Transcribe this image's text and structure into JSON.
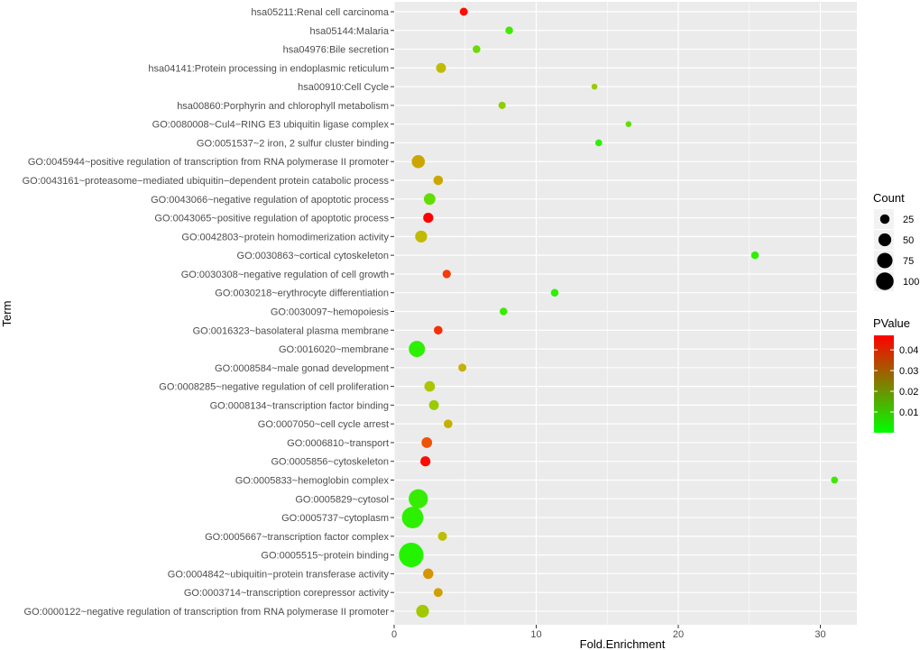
{
  "chart_data": {
    "type": "scatter",
    "xlabel": "Fold.Enrichment",
    "ylabel": "Term",
    "xlim": [
      0,
      32
    ],
    "xticks": [
      0,
      10,
      20,
      30
    ],
    "grid": true,
    "colors": {
      "panel": "#ebebeb",
      "grid": "#ffffff",
      "low": "#00ff00",
      "high": "#ff0000"
    },
    "size_legend": {
      "title": "Count",
      "values": [
        25,
        50,
        75,
        100
      ]
    },
    "color_legend": {
      "title": "PValue",
      "range": [
        0,
        0.047
      ],
      "ticks": [
        0.04,
        0.03,
        0.02,
        0.01
      ],
      "tick_labels": [
        "0.04",
        "0.03",
        "0.02",
        "0.01"
      ]
    },
    "points": [
      {
        "term": "hsa05211:Renal cell carcinoma",
        "x": 4.9,
        "pvalue": 0.046,
        "count": 9
      },
      {
        "term": "hsa05144:Malaria",
        "x": 8.1,
        "pvalue": 0.007,
        "count": 8
      },
      {
        "term": "hsa04976:Bile secretion",
        "x": 5.8,
        "pvalue": 0.012,
        "count": 8
      },
      {
        "term": "hsa04141:Protein processing in endoplasmic reticulum",
        "x": 3.3,
        "pvalue": 0.022,
        "count": 15
      },
      {
        "term": "hsa00910:Cell Cycle",
        "x": 14.1,
        "pvalue": 0.017,
        "count": 4
      },
      {
        "term": "hsa00860:Porphyrin and chlorophyll metabolism",
        "x": 7.6,
        "pvalue": 0.016,
        "count": 7
      },
      {
        "term": "GO:0080008~Cul4-RING E3 ubiquitin ligase complex",
        "x": 16.5,
        "pvalue": 0.011,
        "count": 4
      },
      {
        "term": "GO:0051537~2 iron, 2 sulfur cluster binding",
        "x": 14.4,
        "pvalue": 0.005,
        "count": 6
      },
      {
        "term": "GO:0045944~positive regulation of transcription from RNA polymerase II promoter",
        "x": 1.7,
        "pvalue": 0.026,
        "count": 30
      },
      {
        "term": "GO:0043161~proteasome-mediated ubiquitin-dependent protein catabolic process",
        "x": 3.1,
        "pvalue": 0.026,
        "count": 14
      },
      {
        "term": "GO:0043066~negative regulation of apoptotic process",
        "x": 2.5,
        "pvalue": 0.011,
        "count": 22
      },
      {
        "term": "GO:0043065~positive regulation of apoptotic process",
        "x": 2.4,
        "pvalue": 0.047,
        "count": 16
      },
      {
        "term": "GO:0042803~protein homodimerization activity",
        "x": 1.9,
        "pvalue": 0.022,
        "count": 24
      },
      {
        "term": "GO:0030863~cortical cytoskeleton",
        "x": 25.4,
        "pvalue": 0.005,
        "count": 8
      },
      {
        "term": "GO:0030308~negative regulation of cell growth",
        "x": 3.7,
        "pvalue": 0.042,
        "count": 10
      },
      {
        "term": "GO:0030218~erythrocyte differentiation",
        "x": 11.3,
        "pvalue": 0.005,
        "count": 8
      },
      {
        "term": "GO:0030097~hemopoiesis",
        "x": 7.7,
        "pvalue": 0.006,
        "count": 8
      },
      {
        "term": "GO:0016323~basolateral plasma membrane",
        "x": 3.1,
        "pvalue": 0.043,
        "count": 11
      },
      {
        "term": "GO:0016020~membrane",
        "x": 1.6,
        "pvalue": 0.005,
        "count": 48
      },
      {
        "term": "GO:0008584~male gonad development",
        "x": 4.8,
        "pvalue": 0.024,
        "count": 9
      },
      {
        "term": "GO:0008285~negative regulation of cell proliferation",
        "x": 2.5,
        "pvalue": 0.019,
        "count": 18
      },
      {
        "term": "GO:0008134~transcription factor binding",
        "x": 2.8,
        "pvalue": 0.017,
        "count": 15
      },
      {
        "term": "GO:0007050~cell cycle arrest",
        "x": 3.8,
        "pvalue": 0.024,
        "count": 11
      },
      {
        "term": "GO:0006810~transport",
        "x": 2.3,
        "pvalue": 0.04,
        "count": 18
      },
      {
        "term": "GO:0005856~cytoskeleton",
        "x": 2.2,
        "pvalue": 0.046,
        "count": 16
      },
      {
        "term": "GO:0005833~hemoglobin complex",
        "x": 31.0,
        "pvalue": 0.007,
        "count": 6
      },
      {
        "term": "GO:0005829~cytosol",
        "x": 1.7,
        "pvalue": 0.006,
        "count": 70
      },
      {
        "term": "GO:0005737~cytoplasm",
        "x": 1.3,
        "pvalue": 0.005,
        "count": 90
      },
      {
        "term": "GO:0005667~transcription factor complex",
        "x": 3.4,
        "pvalue": 0.021,
        "count": 12
      },
      {
        "term": "GO:0005515~protein binding",
        "x": 1.2,
        "pvalue": 0.004,
        "count": 120
      },
      {
        "term": "GO:0004842~ubiquitin-protein transferase activity",
        "x": 2.4,
        "pvalue": 0.03,
        "count": 17
      },
      {
        "term": "GO:0003714~transcription corepressor activity",
        "x": 3.1,
        "pvalue": 0.027,
        "count": 12
      },
      {
        "term": "GO:0000122~negative regulation of transcription from RNA polymerase II promoter",
        "x": 2.0,
        "pvalue": 0.018,
        "count": 28
      }
    ]
  }
}
